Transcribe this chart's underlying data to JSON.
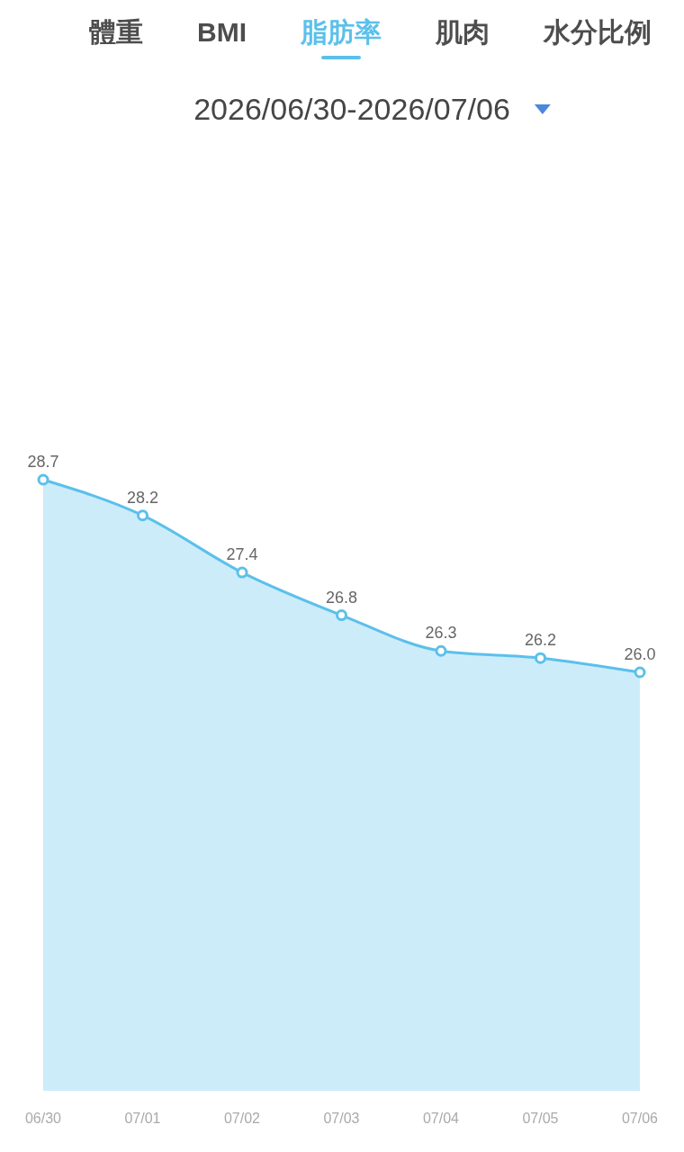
{
  "chart_data": {
    "type": "area",
    "title": "脂肪率",
    "subtitle": "2026/06/30-2026/07/06",
    "annotations": [
      "體重",
      "BMI",
      "肌肉",
      "水分比例"
    ],
    "categories": [
      "06/30",
      "07/01",
      "07/02",
      "07/03",
      "07/04",
      "07/05",
      "07/06"
    ],
    "values": [
      28.7,
      28.2,
      27.4,
      26.8,
      26.3,
      26.2,
      26.0
    ],
    "value_labels": [
      "28.7",
      "28.2",
      "27.4",
      "26.8",
      "26.3",
      "26.2",
      "26.0"
    ],
    "color": "#5bc0eb",
    "marker": "circle",
    "tick_labels": "x"
  }
}
